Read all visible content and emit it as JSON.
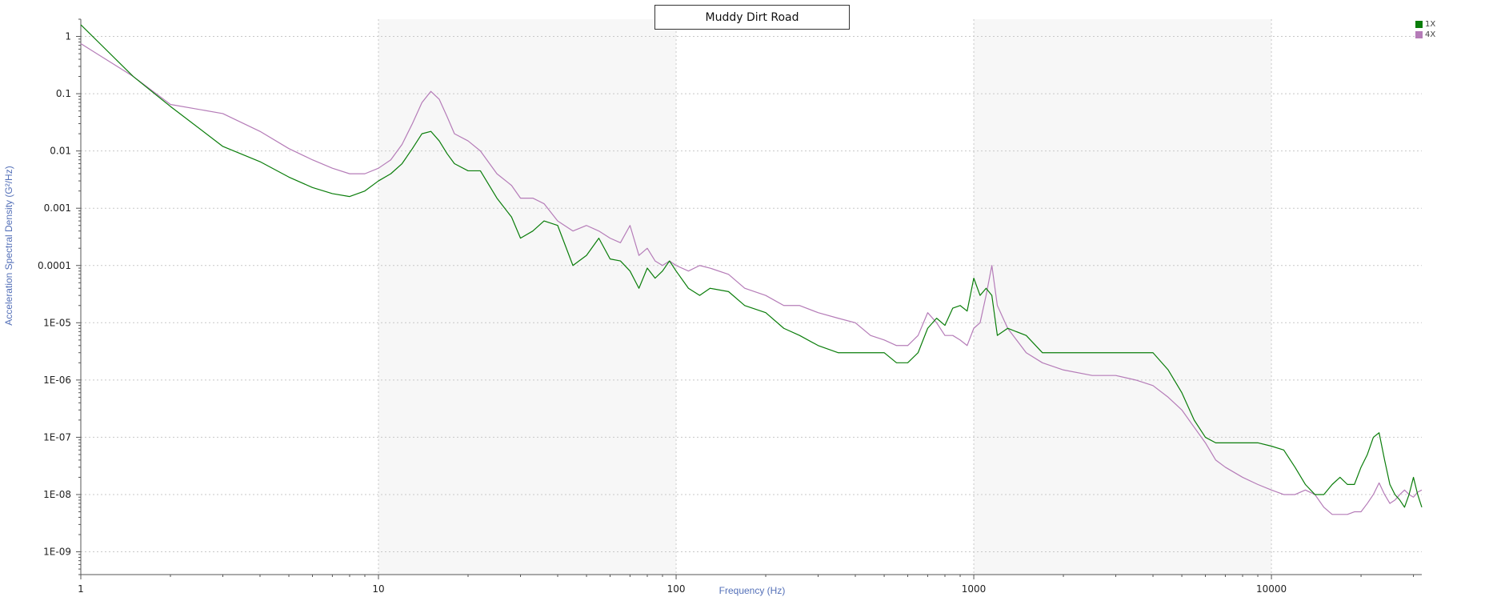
{
  "chart_data": {
    "type": "line",
    "title": "Muddy Dirt Road",
    "xlabel": "Frequency (Hz)",
    "ylabel": "Acceleration Spectral Density (G²/Hz)",
    "x_scale": "log",
    "y_scale": "log",
    "xlim": [
      1,
      32000
    ],
    "ylim": [
      4e-10,
      2
    ],
    "grid": true,
    "legend_position": "top-right",
    "x_ticks": [
      "1",
      "10",
      "100",
      "1000",
      "10000"
    ],
    "y_ticks": [
      "1",
      "0.1",
      "0.01",
      "0.001",
      "0.0001",
      "1E-05",
      "1E-06",
      "1E-07",
      "1E-08",
      "1E-09"
    ],
    "series": [
      {
        "name": "1X",
        "color": "#0a7d0a",
        "x": [
          1,
          1.5,
          2,
          3,
          4,
          5,
          6,
          7,
          8,
          9,
          10,
          11,
          12,
          13,
          14,
          15,
          16,
          17,
          18,
          20,
          22,
          25,
          28,
          30,
          33,
          36,
          40,
          45,
          50,
          55,
          60,
          65,
          70,
          75,
          80,
          85,
          90,
          95,
          100,
          110,
          120,
          130,
          150,
          170,
          200,
          230,
          260,
          300,
          350,
          400,
          450,
          500,
          550,
          600,
          650,
          700,
          750,
          800,
          850,
          900,
          950,
          1000,
          1050,
          1100,
          1150,
          1200,
          1300,
          1500,
          1700,
          2000,
          2500,
          3000,
          3500,
          4000,
          4500,
          5000,
          5500,
          6000,
          6500,
          7000,
          8000,
          9000,
          10000,
          11000,
          12000,
          13000,
          14000,
          15000,
          16000,
          17000,
          18000,
          19000,
          20000,
          21000,
          22000,
          23000,
          24000,
          25000,
          26000,
          27000,
          28000,
          29000,
          30000,
          31000,
          32000
        ],
        "values": [
          1.6,
          0.2,
          0.06,
          0.012,
          0.0065,
          0.0035,
          0.0023,
          0.0018,
          0.0016,
          0.002,
          0.003,
          0.004,
          0.006,
          0.011,
          0.02,
          0.022,
          0.015,
          0.009,
          0.006,
          0.0045,
          0.0045,
          0.0015,
          0.0007,
          0.0003,
          0.0004,
          0.0006,
          0.0005,
          0.0001,
          0.00015,
          0.0003,
          0.00013,
          0.00012,
          8e-05,
          4e-05,
          9e-05,
          6e-05,
          8e-05,
          0.00012,
          8e-05,
          4e-05,
          3e-05,
          4e-05,
          3.5e-05,
          2e-05,
          1.5e-05,
          8e-06,
          6e-06,
          4e-06,
          3e-06,
          3e-06,
          3e-06,
          3e-06,
          2e-06,
          2e-06,
          3e-06,
          8e-06,
          1.2e-05,
          9e-06,
          1.8e-05,
          2e-05,
          1.6e-05,
          6e-05,
          3e-05,
          4e-05,
          3e-05,
          6e-06,
          8e-06,
          6e-06,
          3e-06,
          3e-06,
          3e-06,
          3e-06,
          3e-06,
          3e-06,
          1.5e-06,
          6e-07,
          2e-07,
          1e-07,
          8e-08,
          8e-08,
          8e-08,
          8e-08,
          7e-08,
          6e-08,
          3e-08,
          1.5e-08,
          1e-08,
          1e-08,
          1.5e-08,
          2e-08,
          1.5e-08,
          1.5e-08,
          3e-08,
          5e-08,
          1e-07,
          1.2e-07,
          4e-08,
          1.5e-08,
          1e-08,
          8e-09,
          6e-09,
          1e-08,
          2e-08,
          1e-08,
          6e-09
        ]
      },
      {
        "name": "4X",
        "color": "#b57cb8",
        "x": [
          1,
          1.5,
          2,
          3,
          4,
          5,
          6,
          7,
          8,
          9,
          10,
          11,
          12,
          13,
          14,
          15,
          16,
          17,
          18,
          20,
          22,
          25,
          28,
          30,
          33,
          36,
          40,
          45,
          50,
          55,
          60,
          65,
          70,
          75,
          80,
          85,
          90,
          95,
          100,
          110,
          120,
          130,
          150,
          170,
          200,
          230,
          260,
          300,
          350,
          400,
          450,
          500,
          550,
          600,
          650,
          700,
          750,
          800,
          850,
          900,
          950,
          1000,
          1050,
          1100,
          1150,
          1200,
          1300,
          1500,
          1700,
          2000,
          2500,
          3000,
          3500,
          4000,
          4500,
          5000,
          5500,
          6000,
          6500,
          7000,
          8000,
          9000,
          10000,
          11000,
          12000,
          13000,
          14000,
          15000,
          16000,
          17000,
          18000,
          19000,
          20000,
          21000,
          22000,
          23000,
          24000,
          25000,
          26000,
          27000,
          28000,
          29000,
          30000,
          31000,
          32000
        ],
        "values": [
          0.75,
          0.2,
          0.065,
          0.045,
          0.022,
          0.011,
          0.007,
          0.005,
          0.004,
          0.004,
          0.005,
          0.007,
          0.013,
          0.03,
          0.07,
          0.11,
          0.08,
          0.04,
          0.02,
          0.015,
          0.01,
          0.004,
          0.0025,
          0.0015,
          0.0015,
          0.0012,
          0.0006,
          0.0004,
          0.0005,
          0.0004,
          0.0003,
          0.00025,
          0.0005,
          0.00015,
          0.0002,
          0.00012,
          0.0001,
          0.00012,
          0.0001,
          8e-05,
          0.0001,
          9e-05,
          7e-05,
          4e-05,
          3e-05,
          2e-05,
          2e-05,
          1.5e-05,
          1.2e-05,
          1e-05,
          6e-06,
          5e-06,
          4e-06,
          4e-06,
          6e-06,
          1.5e-05,
          1e-05,
          6e-06,
          6e-06,
          5e-06,
          4e-06,
          8e-06,
          1e-05,
          3e-05,
          0.0001,
          2e-05,
          8e-06,
          3e-06,
          2e-06,
          1.5e-06,
          1.2e-06,
          1.2e-06,
          1e-06,
          8e-07,
          5e-07,
          3e-07,
          1.5e-07,
          8e-08,
          4e-08,
          3e-08,
          2e-08,
          1.5e-08,
          1.2e-08,
          1e-08,
          1e-08,
          1.2e-08,
          1e-08,
          6e-09,
          4.5e-09,
          4.5e-09,
          4.5e-09,
          5e-09,
          5e-09,
          7e-09,
          1e-08,
          1.6e-08,
          1e-08,
          7e-09,
          8e-09,
          1e-08,
          1.2e-08,
          1e-08,
          9e-09,
          1.1e-08,
          1.2e-08
        ]
      }
    ]
  }
}
